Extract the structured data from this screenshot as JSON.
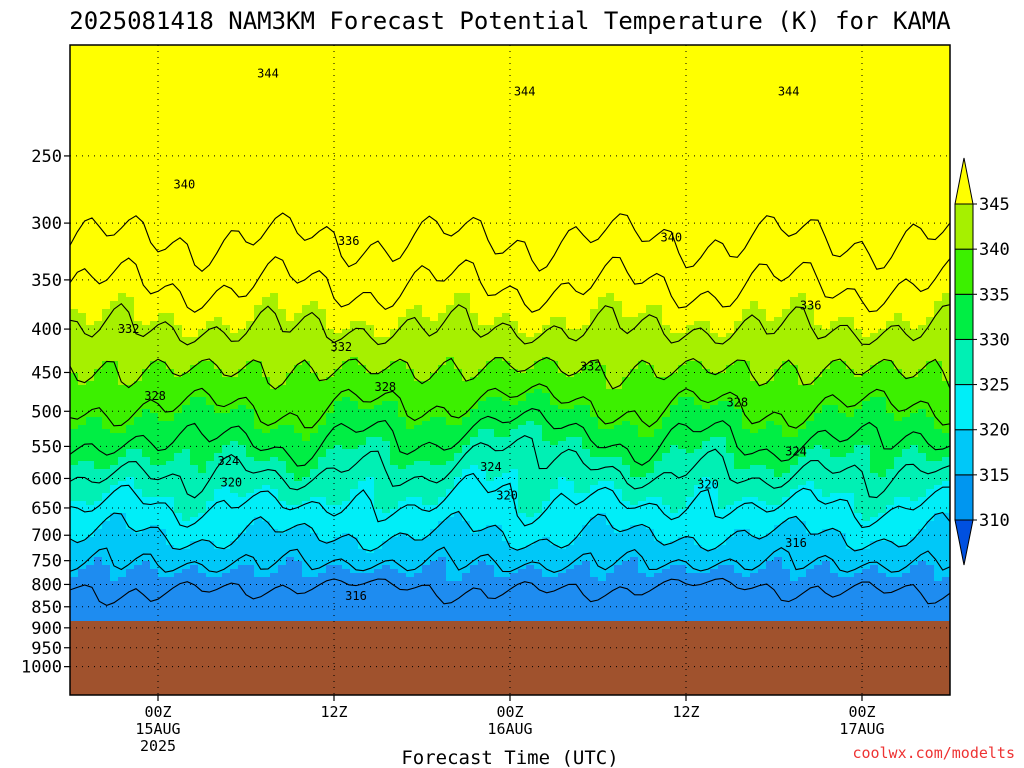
{
  "chart_data": {
    "type": "heatmap",
    "title": "2025081418 NAM3KM Forecast Potential Temperature (K) for KAMA",
    "xlabel": "Forecast Time (UTC)",
    "ylabel": "",
    "credit": "coolwx.com/modelts",
    "y_axis": {
      "unit": "hPa",
      "scale": "log",
      "inverted": true,
      "range": [
        1080,
        185
      ],
      "ticks": [
        250,
        300,
        350,
        400,
        450,
        500,
        550,
        600,
        650,
        700,
        750,
        800,
        850,
        900,
        950,
        1000
      ]
    },
    "x_axis": {
      "unit": "hour",
      "range": [
        -6,
        54
      ],
      "ticks": [
        {
          "x": 0,
          "lines": [
            "00Z",
            "15AUG",
            "2025"
          ]
        },
        {
          "x": 12,
          "lines": [
            "12Z"
          ]
        },
        {
          "x": 24,
          "lines": [
            "00Z",
            "16AUG"
          ]
        },
        {
          "x": 36,
          "lines": [
            "12Z"
          ]
        },
        {
          "x": 48,
          "lines": [
            "00Z",
            "17AUG"
          ]
        }
      ]
    },
    "grid": true,
    "colorbar": {
      "position": "right",
      "levels": [
        310,
        315,
        320,
        325,
        330,
        335,
        340,
        345
      ],
      "label_values": [
        "310",
        "315",
        "320",
        "325",
        "330",
        "335",
        "340",
        "345"
      ],
      "colors": [
        "#0050e0",
        "#0096f0",
        "#00c8f8",
        "#00eef8",
        "#00f0b4",
        "#00ee44",
        "#3cf000",
        "#a6f000",
        "#ffff00"
      ]
    },
    "colors": {
      "theta_310_315": "#1e8cf0",
      "theta_315_320": "#00c8f8",
      "theta_320_325": "#00eef8",
      "theta_325_330": "#00f0b4",
      "theta_330_335": "#00ee44",
      "theta_335_340": "#3cf000",
      "theta_340_345": "#a6f000",
      "theta_345_plus": "#ffff00",
      "terrain": "#a0522d"
    },
    "terrain_top_hPa": 885,
    "contour_labels": [
      {
        "text": "344",
        "x": 7.5,
        "p": 200
      },
      {
        "text": "344",
        "x": 25,
        "p": 210
      },
      {
        "text": "344",
        "x": 43,
        "p": 210
      },
      {
        "text": "340",
        "x": 1.8,
        "p": 270
      },
      {
        "text": "340",
        "x": 35,
        "p": 312
      },
      {
        "text": "336",
        "x": 13,
        "p": 315
      },
      {
        "text": "336",
        "x": 44.5,
        "p": 375
      },
      {
        "text": "332",
        "x": -2,
        "p": 400
      },
      {
        "text": "332",
        "x": 12.5,
        "p": 420
      },
      {
        "text": "332",
        "x": 29.5,
        "p": 443
      },
      {
        "text": "328",
        "x": -0.2,
        "p": 480
      },
      {
        "text": "328",
        "x": 15.5,
        "p": 468
      },
      {
        "text": "328",
        "x": 39.5,
        "p": 488
      },
      {
        "text": "324",
        "x": 4.8,
        "p": 572
      },
      {
        "text": "324",
        "x": 22.7,
        "p": 582
      },
      {
        "text": "324",
        "x": 43.5,
        "p": 558
      },
      {
        "text": "320",
        "x": 5,
        "p": 607
      },
      {
        "text": "320",
        "x": 23.8,
        "p": 628
      },
      {
        "text": "320",
        "x": 37.5,
        "p": 610
      },
      {
        "text": "316",
        "x": 43.5,
        "p": 715
      },
      {
        "text": "316",
        "x": 13.5,
        "p": 825
      }
    ]
  }
}
